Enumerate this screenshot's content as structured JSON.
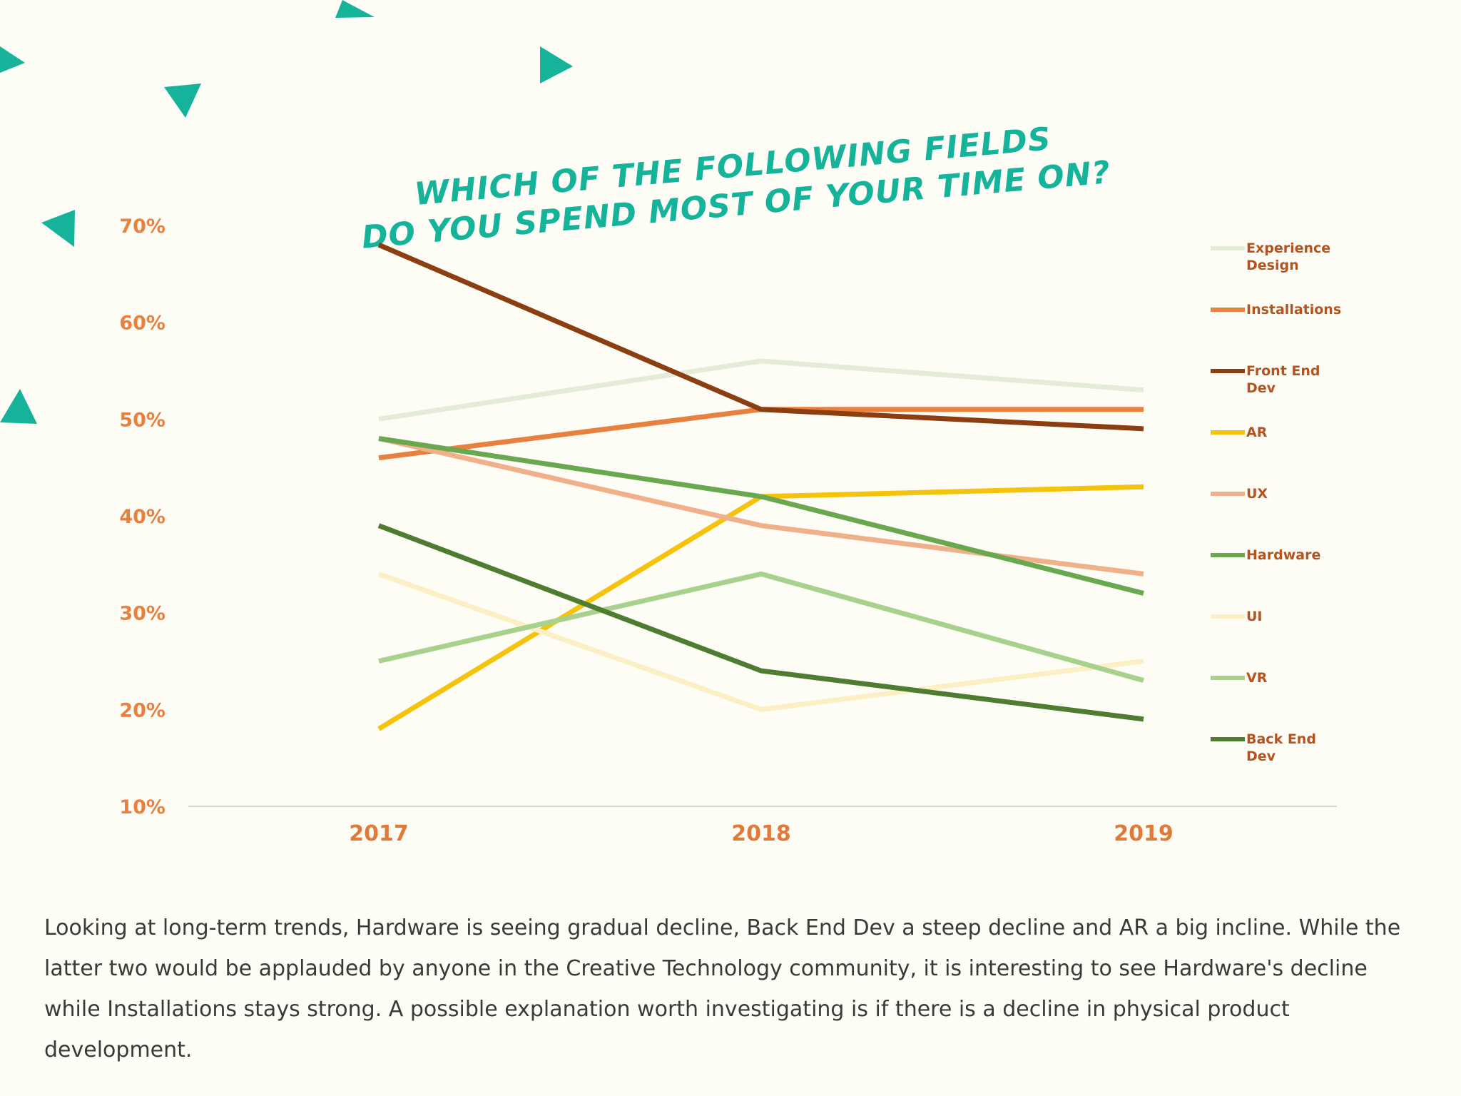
{
  "chart_data": {
    "type": "line",
    "title": [
      "WHICH OF THE FOLLOWING FIELDS",
      "DO YOU SPEND MOST OF YOUR TIME ON?"
    ],
    "x": [
      "2017",
      "2018",
      "2019"
    ],
    "ylim": [
      10,
      70
    ],
    "yticks": [
      "70%",
      "60%",
      "50%",
      "40%",
      "30%",
      "20%",
      "10%"
    ],
    "grid": false,
    "legend_position": "right",
    "series": [
      {
        "name": "Experience Design",
        "values": [
          50,
          56,
          53
        ],
        "color": "#e4ecd9"
      },
      {
        "name": "Installations",
        "values": [
          46,
          51,
          51
        ],
        "color": "#e8803f"
      },
      {
        "name": "Front End Dev",
        "values": [
          68,
          51,
          49
        ],
        "color": "#8a3e12"
      },
      {
        "name": "AR",
        "values": [
          18,
          42,
          43
        ],
        "color": "#f5c20c"
      },
      {
        "name": "UX",
        "values": [
          48,
          39,
          34
        ],
        "color": "#f0b08a"
      },
      {
        "name": "Hardware",
        "values": [
          48,
          42,
          32
        ],
        "color": "#6aa84f"
      },
      {
        "name": "UI",
        "values": [
          34,
          20,
          25
        ],
        "color": "#fdefc4"
      },
      {
        "name": "VR",
        "values": [
          25,
          34,
          23
        ],
        "color": "#a9d18e"
      },
      {
        "name": "Back End Dev",
        "values": [
          39,
          24,
          19
        ],
        "color": "#4e7d32"
      }
    ]
  },
  "caption": "Looking at long-term trends, Hardware is seeing gradual decline, Back End Dev a steep decline and AR a big incline. While the latter two would be applauded by anyone in the Creative Technology community, it is interesting to see Hardware's decline while Installations stays strong. A possible explanation worth investigating is if there is a decline in physical product development."
}
